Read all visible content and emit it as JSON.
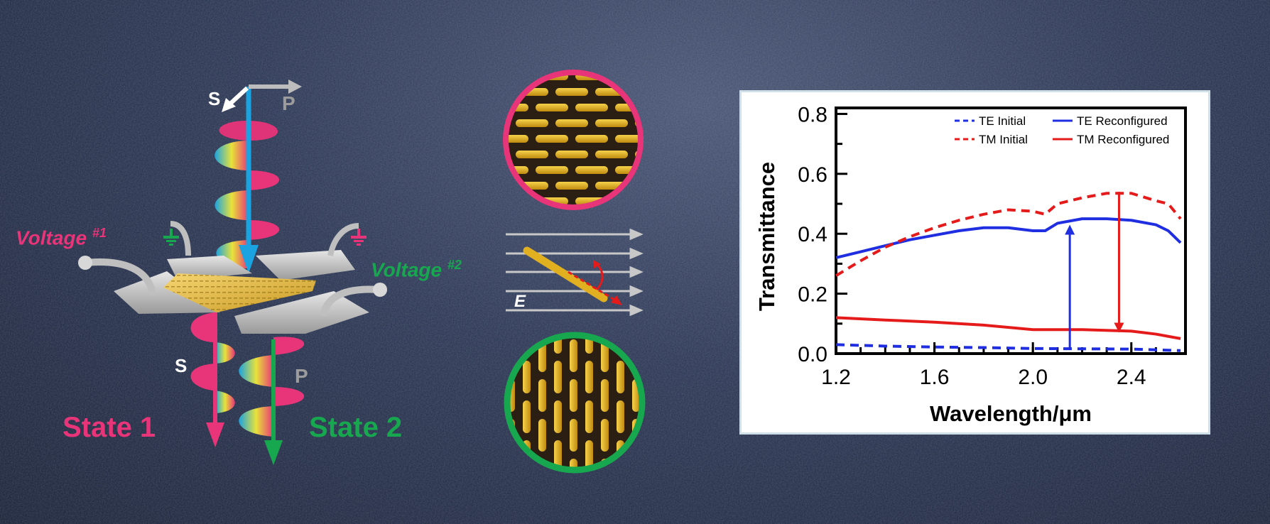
{
  "diagram": {
    "left": {
      "voltage1_main": "Voltage ",
      "voltage1_sup": "#1",
      "voltage2_main": "Voltage ",
      "voltage2_sup": "#2",
      "s_top": "S",
      "p_top": "P",
      "s_bottom": "S",
      "p_bottom": "P",
      "state1": "State 1",
      "state2": "State 2"
    },
    "middle": {
      "field_label": "E"
    },
    "colors": {
      "pink": "#e83478",
      "green": "#17a84f",
      "cyan": "#1aa3e0",
      "gold": "#e8b51a",
      "gray": "#c8c8c8"
    }
  },
  "chart_data": {
    "type": "line",
    "xlabel": "Wavelength/μm",
    "ylabel": "Transmittance",
    "xlim": [
      1.2,
      2.62
    ],
    "ylim": [
      0.0,
      0.82
    ],
    "xticks": [
      "1.2",
      "1.6",
      "2.0",
      "2.4"
    ],
    "yticks": [
      "0.0",
      "0.2",
      "0.4",
      "0.6",
      "0.8"
    ],
    "legend_position": "top-right",
    "series": [
      {
        "name": "TE Initial",
        "color": "#1f2ee0",
        "dash": true,
        "x": [
          1.2,
          1.4,
          1.6,
          1.8,
          2.0,
          2.2,
          2.4,
          2.6
        ],
        "y": [
          0.03,
          0.025,
          0.022,
          0.02,
          0.017,
          0.016,
          0.015,
          0.01
        ]
      },
      {
        "name": "TE Reconfigured",
        "color": "#1f2ee0",
        "dash": false,
        "x": [
          1.2,
          1.3,
          1.4,
          1.5,
          1.6,
          1.7,
          1.8,
          1.9,
          2.0,
          2.05,
          2.1,
          2.2,
          2.3,
          2.4,
          2.5,
          2.55,
          2.6
        ],
        "y": [
          0.32,
          0.34,
          0.36,
          0.38,
          0.395,
          0.41,
          0.42,
          0.42,
          0.41,
          0.41,
          0.435,
          0.45,
          0.45,
          0.445,
          0.43,
          0.41,
          0.37
        ]
      },
      {
        "name": "TM Initial",
        "color": "#e51b1b",
        "dash": true,
        "x": [
          1.2,
          1.3,
          1.4,
          1.5,
          1.6,
          1.7,
          1.8,
          1.9,
          2.0,
          2.05,
          2.1,
          2.2,
          2.3,
          2.4,
          2.5,
          2.55,
          2.6
        ],
        "y": [
          0.26,
          0.31,
          0.355,
          0.39,
          0.42,
          0.445,
          0.465,
          0.48,
          0.475,
          0.465,
          0.5,
          0.52,
          0.535,
          0.535,
          0.51,
          0.5,
          0.45
        ]
      },
      {
        "name": "TM Reconfigured",
        "color": "#e51b1b",
        "dash": false,
        "x": [
          1.2,
          1.4,
          1.6,
          1.8,
          2.0,
          2.2,
          2.4,
          2.5,
          2.6
        ],
        "y": [
          0.12,
          0.112,
          0.105,
          0.095,
          0.08,
          0.08,
          0.075,
          0.065,
          0.05
        ]
      }
    ],
    "arrows": [
      {
        "color": "#1f2ee0",
        "x": 2.15,
        "from": 0.02,
        "to": 0.43
      },
      {
        "color": "#e51b1b",
        "x": 2.35,
        "from": 0.54,
        "to": 0.07
      }
    ]
  }
}
